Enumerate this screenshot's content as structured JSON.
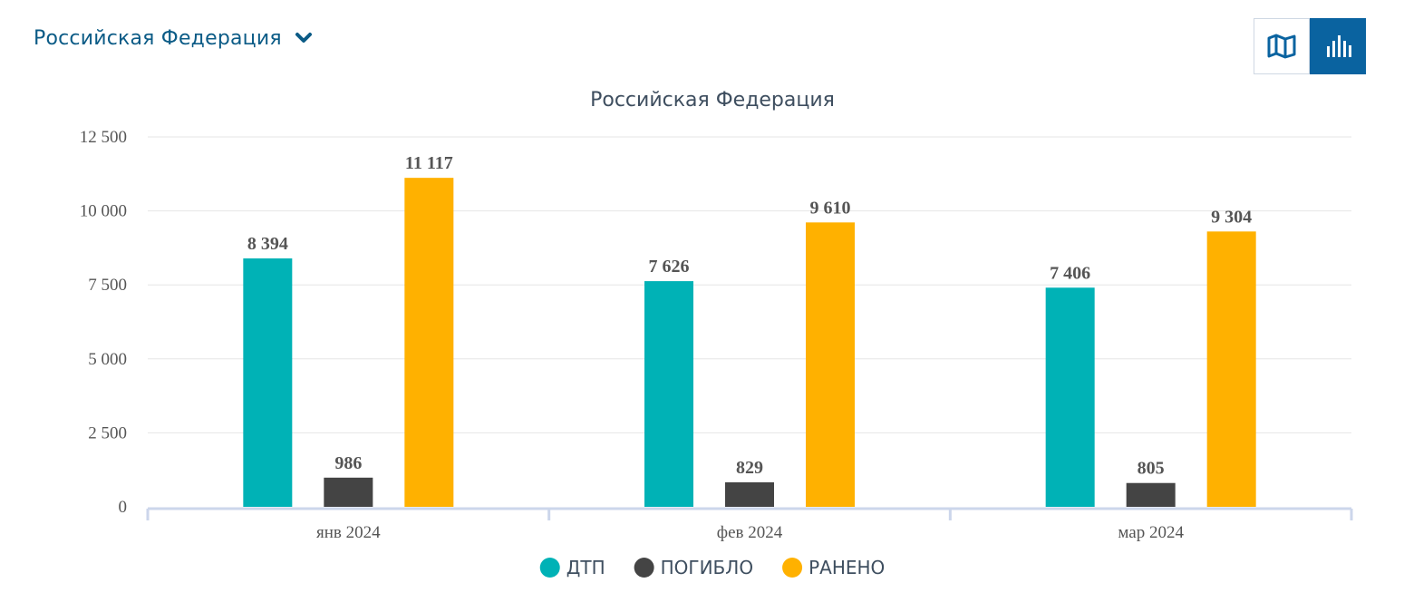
{
  "header": {
    "region": "Российская Федерация",
    "region_icon": "chevron-down-icon"
  },
  "view_toggle": {
    "map_icon": "map-icon",
    "chart_icon": "bar-chart-icon",
    "active": "chart",
    "active_color": "#0a63a0"
  },
  "chart_data": {
    "type": "bar",
    "title": "Российская Федерация",
    "categories": [
      "янв 2024",
      "фев 2024",
      "мар 2024"
    ],
    "series": [
      {
        "name": "ДТП",
        "color": "#00b2b6",
        "values": [
          8394,
          7626,
          7406
        ],
        "labels": [
          "8 394",
          "7 626",
          "7 406"
        ]
      },
      {
        "name": "ПОГИБЛО",
        "color": "#444444",
        "values": [
          986,
          829,
          805
        ],
        "labels": [
          "986",
          "829",
          "805"
        ]
      },
      {
        "name": "РАНЕНО",
        "color": "#ffb100",
        "values": [
          11117,
          9610,
          9304
        ],
        "labels": [
          "11 117",
          "9 610",
          "9 304"
        ]
      }
    ],
    "ylim": [
      0,
      12500
    ],
    "yticks": [
      0,
      2500,
      5000,
      7500,
      10000,
      12500
    ],
    "ytick_labels": [
      "0",
      "2 500",
      "5 000",
      "7 500",
      "10 000",
      "12 500"
    ],
    "grid": true,
    "legend": "bottom-center"
  }
}
